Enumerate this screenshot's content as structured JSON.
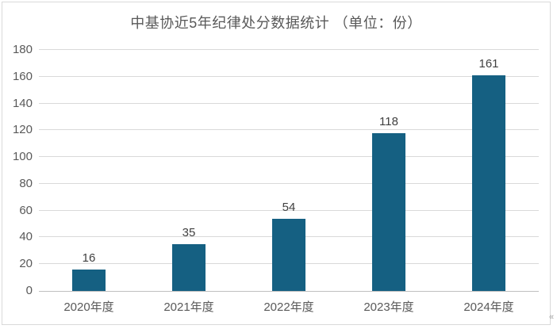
{
  "chart_data": {
    "type": "bar",
    "title": "中基协近5年纪律处分数据统计 （单位：份）",
    "categories": [
      "2020年度",
      "2021年度",
      "2022年度",
      "2023年度",
      "2024年度"
    ],
    "values": [
      16,
      35,
      54,
      118,
      161
    ],
    "xlabel": "",
    "ylabel": "",
    "ylim": [
      0,
      180
    ],
    "ytick_step": 20,
    "grid": true,
    "legend": "none",
    "bar_color": "#156082",
    "colors": {
      "title_text": "#595959",
      "tick_text": "#595959",
      "value_label_text": "#404040",
      "gridline": "#d9d9d9",
      "axis_line": "#bfbfbf",
      "panel_border": "#d9d9d9",
      "background": "#ffffff"
    }
  },
  "page": {
    "corner_glyph": "«"
  }
}
